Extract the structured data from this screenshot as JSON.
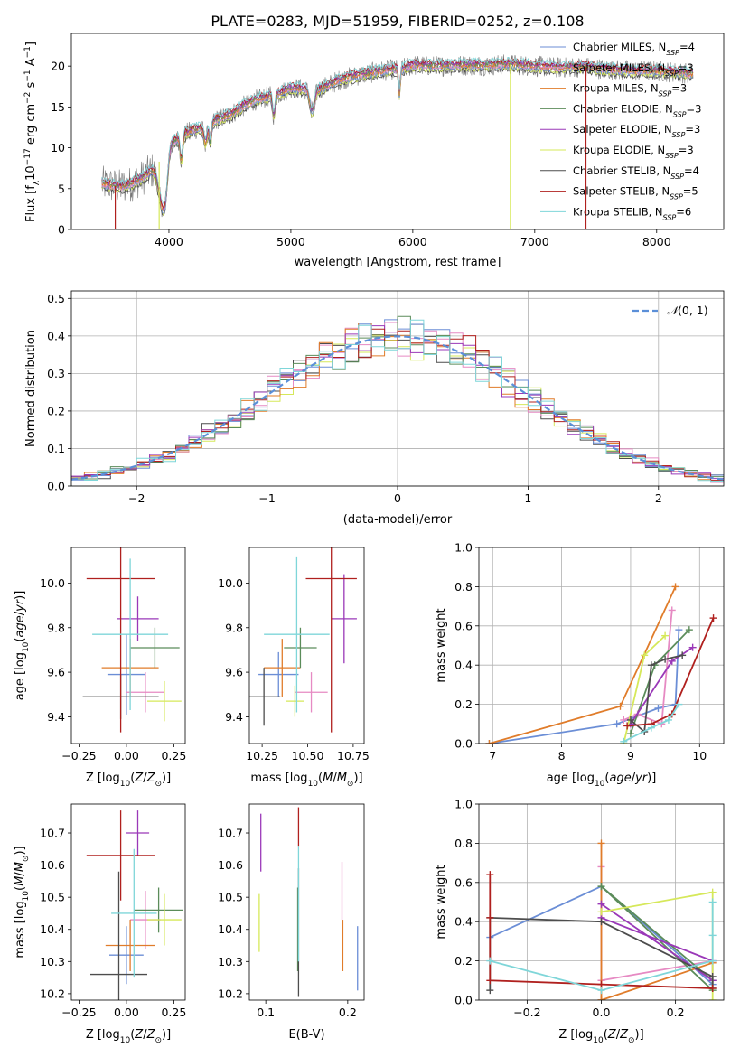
{
  "figure_title": "PLATE=0283, MJD=51959, FIBERID=0252, z=0.108",
  "colors": {
    "Chabrier MILES": "#6b8ed6",
    "Salpeter MILES": "#e68ac3",
    "Kroupa MILES": "#e07c2a",
    "Chabrier ELODIE": "#5b8c5a",
    "Salpeter ELODIE": "#9a38b8",
    "Kroupa ELODIE": "#d6e85a",
    "Chabrier STELIB": "#4d4d4d",
    "Salpeter STELIB": "#b0201e",
    "Kroupa STELIB": "#7fd6d9"
  },
  "legend": [
    {
      "key": "Chabrier MILES",
      "pre": "Chabrier MILES, N",
      "n": "4"
    },
    {
      "key": "Salpeter MILES",
      "pre": "Salpeter MILES, N",
      "n": "3"
    },
    {
      "key": "Kroupa MILES",
      "pre": "Kroupa MILES, N",
      "n": "3"
    },
    {
      "key": "Chabrier ELODIE",
      "pre": "Chabrier ELODIE, N",
      "n": "3"
    },
    {
      "key": "Salpeter ELODIE",
      "pre": "Salpeter ELODIE, N",
      "n": "3"
    },
    {
      "key": "Kroupa ELODIE",
      "pre": "Kroupa ELODIE, N",
      "n": "3"
    },
    {
      "key": "Chabrier STELIB",
      "pre": "Chabrier STELIB, N",
      "n": "4"
    },
    {
      "key": "Salpeter STELIB",
      "pre": "Salpeter STELIB, N",
      "n": "5"
    },
    {
      "key": "Kroupa STELIB",
      "pre": "Kroupa STELIB, N",
      "n": "6"
    }
  ],
  "chart_data": [
    {
      "id": "spectrum",
      "type": "line",
      "xlabel": "wavelength [Angstrom, rest frame]",
      "ylabel": "Flux [f_λ 10^-17 erg cm^-2 s^-1 A^-1]",
      "xlim": [
        3200,
        8550
      ],
      "ylim": [
        0,
        24
      ],
      "xticks": [
        4000,
        5000,
        6000,
        7000,
        8000
      ],
      "yticks": [
        0,
        5,
        10,
        15,
        20
      ],
      "continuum": [
        [
          3450,
          5.6
        ],
        [
          3600,
          5.2
        ],
        [
          3700,
          5.6
        ],
        [
          3800,
          6.5
        ],
        [
          3900,
          7.8
        ],
        [
          4000,
          10.3
        ],
        [
          4100,
          11.4
        ],
        [
          4200,
          12.2
        ],
        [
          4300,
          12.6
        ],
        [
          4400,
          13.5
        ],
        [
          4500,
          14.0
        ],
        [
          4600,
          15.0
        ],
        [
          4700,
          15.8
        ],
        [
          4800,
          16.2
        ],
        [
          4900,
          16.6
        ],
        [
          5000,
          17.3
        ],
        [
          5100,
          17.2
        ],
        [
          5200,
          16.9
        ],
        [
          5300,
          17.6
        ],
        [
          5400,
          18.3
        ],
        [
          5500,
          18.7
        ],
        [
          5600,
          19.0
        ],
        [
          5700,
          19.3
        ],
        [
          5800,
          19.5
        ],
        [
          5900,
          19.6
        ],
        [
          6000,
          20.1
        ],
        [
          6200,
          20.0
        ],
        [
          6400,
          20.1
        ],
        [
          6600,
          20.1
        ],
        [
          6800,
          20.2
        ],
        [
          7000,
          20.0
        ],
        [
          7200,
          19.8
        ],
        [
          7400,
          19.9
        ],
        [
          7600,
          19.6
        ],
        [
          7800,
          19.4
        ],
        [
          8000,
          19.4
        ],
        [
          8200,
          19.2
        ],
        [
          8300,
          19.0
        ]
      ]
    },
    {
      "id": "residuals",
      "type": "bar",
      "xlabel": "(data-model)/error",
      "ylabel": "Normed distribution",
      "xlim": [
        -2.5,
        2.5
      ],
      "ylim": [
        0,
        0.52
      ],
      "xticks": [
        -2,
        -1,
        0,
        1,
        2
      ],
      "yticks": [
        0.0,
        0.1,
        0.2,
        0.3,
        0.4,
        0.5
      ],
      "legend": "$\\mathcal{N}(0, 1)$",
      "bin_width": 0.1
    },
    {
      "id": "z_age",
      "type": "scatter",
      "xlabel": "Z [log10(Z/Z⊙)]",
      "ylabel": "age  [log10(age/yr)]",
      "xlim": [
        -0.29,
        0.31
      ],
      "ylim": [
        9.28,
        10.16
      ],
      "xticks": [
        -0.25,
        0.0,
        0.25
      ],
      "yticks": [
        9.4,
        9.6,
        9.8,
        10.0
      ],
      "points": [
        {
          "key": "Chabrier MILES",
          "x": 0.0,
          "xe": 0.1,
          "y": 9.59,
          "ye": 0.18
        },
        {
          "key": "Salpeter MILES",
          "x": 0.1,
          "xe": 0.1,
          "y": 9.51,
          "ye": 0.09
        },
        {
          "key": "Kroupa MILES",
          "x": 0.02,
          "xe": 0.15,
          "y": 9.62,
          "ye": 0.13
        },
        {
          "key": "Chabrier ELODIE",
          "x": 0.15,
          "xe": 0.13,
          "y": 9.71,
          "ye": 0.09
        },
        {
          "key": "Salpeter ELODIE",
          "x": 0.06,
          "xe": 0.11,
          "y": 9.84,
          "ye": 0.1
        },
        {
          "key": "Kroupa ELODIE",
          "x": 0.2,
          "xe": 0.09,
          "y": 9.47,
          "ye": 0.09
        },
        {
          "key": "Chabrier STELIB",
          "x": -0.03,
          "xe": 0.2,
          "y": 9.49,
          "ye": 0.1
        },
        {
          "key": "Salpeter STELIB",
          "x": -0.03,
          "xe": 0.18,
          "y": 10.02,
          "ye": 0.69
        },
        {
          "key": "Kroupa STELIB",
          "x": 0.02,
          "xe": 0.2,
          "y": 9.77,
          "ye": 0.34
        }
      ]
    },
    {
      "id": "mass_age",
      "type": "scatter",
      "xlabel": "mass [log10(M/M⊙)]",
      "ylabel": "",
      "xlim": [
        10.18,
        10.81
      ],
      "ylim": [
        9.28,
        10.16
      ],
      "xticks": [
        10.25,
        10.5,
        10.75
      ],
      "yticks": [
        9.4,
        9.6,
        9.8,
        10.0
      ],
      "points": [
        {
          "key": "Chabrier MILES",
          "x": 10.34,
          "xe": 0.11,
          "y": 9.59,
          "ye": 0.1
        },
        {
          "key": "Salpeter MILES",
          "x": 10.52,
          "xe": 0.09,
          "y": 9.51,
          "ye": 0.09
        },
        {
          "key": "Kroupa MILES",
          "x": 10.36,
          "xe": 0.1,
          "y": 9.62,
          "ye": 0.13
        },
        {
          "key": "Chabrier ELODIE",
          "x": 10.46,
          "xe": 0.09,
          "y": 9.71,
          "ye": 0.09
        },
        {
          "key": "Salpeter ELODIE",
          "x": 10.7,
          "xe": 0.07,
          "y": 9.84,
          "ye": 0.2
        },
        {
          "key": "Kroupa ELODIE",
          "x": 10.43,
          "xe": 0.05,
          "y": 9.47,
          "ye": 0.07
        },
        {
          "key": "Chabrier STELIB",
          "x": 10.26,
          "xe": 0.09,
          "y": 9.49,
          "ye": 0.13
        },
        {
          "key": "Salpeter STELIB",
          "x": 10.63,
          "xe": 0.14,
          "y": 10.02,
          "ye": 0.69
        },
        {
          "key": "Kroupa STELIB",
          "x": 10.44,
          "xe": 0.18,
          "y": 9.77,
          "ye": 0.35
        }
      ]
    },
    {
      "id": "age_weight",
      "type": "line",
      "xlabel": "age  [log10(age/yr)]",
      "ylabel": "mass weight",
      "xlim": [
        6.8,
        10.35
      ],
      "ylim": [
        0,
        1.0
      ],
      "xticks": [
        7,
        8,
        9,
        10
      ],
      "yticks": [
        0.0,
        0.2,
        0.4,
        0.6,
        0.8,
        1.0
      ],
      "series": [
        {
          "key": "Chabrier MILES",
          "x": [
            6.95,
            8.8,
            9.4,
            9.65,
            9.7
          ],
          "y": [
            0.0,
            0.1,
            0.18,
            0.2,
            0.58
          ]
        },
        {
          "key": "Salpeter MILES",
          "x": [
            8.9,
            9.1,
            9.45,
            9.6
          ],
          "y": [
            0.12,
            0.15,
            0.1,
            0.68
          ]
        },
        {
          "key": "Kroupa MILES",
          "x": [
            6.95,
            8.85,
            9.65
          ],
          "y": [
            0.0,
            0.19,
            0.8
          ]
        },
        {
          "key": "Chabrier ELODIE",
          "x": [
            9.0,
            9.35,
            9.85
          ],
          "y": [
            0.05,
            0.4,
            0.58
          ]
        },
        {
          "key": "Salpeter ELODIE",
          "x": [
            9.0,
            9.6,
            9.9
          ],
          "y": [
            0.1,
            0.42,
            0.49
          ]
        },
        {
          "key": "Kroupa ELODIE",
          "x": [
            8.9,
            9.2,
            9.5
          ],
          "y": [
            0.0,
            0.45,
            0.55
          ]
        },
        {
          "key": "Chabrier STELIB",
          "x": [
            9.0,
            9.2,
            9.3,
            9.5,
            9.75
          ],
          "y": [
            0.12,
            0.06,
            0.4,
            0.43,
            0.45
          ]
        },
        {
          "key": "Salpeter STELIB",
          "x": [
            8.95,
            9.3,
            9.6,
            10.2
          ],
          "y": [
            0.09,
            0.1,
            0.15,
            0.64
          ]
        },
        {
          "key": "Kroupa STELIB",
          "x": [
            8.9,
            9.3,
            9.55,
            9.7
          ],
          "y": [
            0.01,
            0.08,
            0.12,
            0.2
          ]
        }
      ]
    },
    {
      "id": "z_mass",
      "type": "scatter",
      "xlabel": "Z [log10(Z/Z⊙)]",
      "ylabel": "mass [log10(M/M⊙)]",
      "xlim": [
        -0.29,
        0.31
      ],
      "ylim": [
        10.18,
        10.79
      ],
      "xticks": [
        -0.25,
        0.0,
        0.25
      ],
      "yticks": [
        10.2,
        10.3,
        10.4,
        10.5,
        10.6,
        10.7
      ],
      "points": [
        {
          "key": "Chabrier MILES",
          "x": 0.0,
          "xe": 0.09,
          "y": 10.32,
          "ye": 0.09
        },
        {
          "key": "Salpeter MILES",
          "x": 0.1,
          "xe": 0.08,
          "y": 10.43,
          "ye": 0.09
        },
        {
          "key": "Kroupa MILES",
          "x": 0.02,
          "xe": 0.13,
          "y": 10.35,
          "ye": 0.08
        },
        {
          "key": "Chabrier ELODIE",
          "x": 0.17,
          "xe": 0.13,
          "y": 10.46,
          "ye": 0.07
        },
        {
          "key": "Salpeter ELODIE",
          "x": 0.06,
          "xe": 0.06,
          "y": 10.7,
          "ye": 0.07
        },
        {
          "key": "Kroupa ELODIE",
          "x": 0.2,
          "xe": 0.09,
          "y": 10.43,
          "ye": 0.08
        },
        {
          "key": "Chabrier STELIB",
          "x": -0.04,
          "xe": 0.15,
          "y": 10.26,
          "ye": 0.32
        },
        {
          "key": "Salpeter STELIB",
          "x": -0.03,
          "xe": 0.18,
          "y": 10.63,
          "ye": 0.14
        },
        {
          "key": "Kroupa STELIB",
          "x": 0.04,
          "xe": 0.12,
          "y": 10.45,
          "ye": 0.2
        }
      ]
    },
    {
      "id": "ebv_mass",
      "type": "scatter",
      "xlabel": "E(B-V)",
      "ylabel": "",
      "xlim": [
        0.08,
        0.22
      ],
      "ylim": [
        10.18,
        10.79
      ],
      "xticks": [
        0.1,
        0.2
      ],
      "yticks": [
        10.2,
        10.3,
        10.4,
        10.5,
        10.6,
        10.7
      ],
      "points": [
        {
          "key": "Chabrier MILES",
          "x": 0.212,
          "xe": 0.0,
          "y": 10.31,
          "ye": 0.1
        },
        {
          "key": "Salpeter MILES",
          "x": 0.193,
          "xe": 0.0,
          "y": 10.52,
          "ye": 0.09
        },
        {
          "key": "Kroupa MILES",
          "x": 0.194,
          "xe": 0.0,
          "y": 10.35,
          "ye": 0.08
        },
        {
          "key": "Chabrier ELODIE",
          "x": 0.139,
          "xe": 0.0,
          "y": 10.4,
          "ye": 0.13
        },
        {
          "key": "Salpeter ELODIE",
          "x": 0.094,
          "xe": 0.0,
          "y": 10.67,
          "ye": 0.09
        },
        {
          "key": "Kroupa ELODIE",
          "x": 0.092,
          "xe": 0.0,
          "y": 10.42,
          "ye": 0.09
        },
        {
          "key": "Chabrier STELIB",
          "x": 0.14,
          "xe": 0.0,
          "y": 10.39,
          "ye": 0.2
        },
        {
          "key": "Salpeter STELIB",
          "x": 0.14,
          "xe": 0.0,
          "y": 10.72,
          "ye": 0.06
        },
        {
          "key": "Kroupa STELIB",
          "x": 0.14,
          "xe": 0.0,
          "y": 10.48,
          "ye": 0.18
        }
      ]
    },
    {
      "id": "z_weight",
      "type": "line",
      "xlabel": "Z [log10(Z/Z⊙)]",
      "ylabel": "mass weight",
      "xlim": [
        -0.33,
        0.33
      ],
      "ylim": [
        0,
        1.0
      ],
      "xticks": [
        -0.2,
        0.0,
        0.2
      ],
      "yticks": [
        0.0,
        0.2,
        0.4,
        0.6,
        0.8,
        1.0
      ],
      "series": [
        {
          "key": "Chabrier MILES",
          "x": [
            -0.3,
            0.0,
            0.3,
            0.3
          ],
          "y": [
            0.32,
            0.58,
            0.08,
            0.1
          ]
        },
        {
          "key": "Salpeter MILES",
          "x": [
            0.0,
            0.3,
            0.0,
            0.0
          ],
          "y": [
            0.1,
            0.2,
            0.1,
            0.68
          ]
        },
        {
          "key": "Kroupa MILES",
          "x": [
            0.0,
            0.3,
            0.0,
            0.0
          ],
          "y": [
            0.0,
            0.19,
            0.0,
            0.8
          ]
        },
        {
          "key": "Chabrier ELODIE",
          "x": [
            0.0,
            0.3,
            0.3,
            0.0
          ],
          "y": [
            0.58,
            0.05,
            0.1,
            0.58
          ]
        },
        {
          "key": "Salpeter ELODIE",
          "x": [
            0.0,
            0.3,
            0.3,
            0.0
          ],
          "y": [
            0.49,
            0.1,
            0.2,
            0.42
          ]
        },
        {
          "key": "Kroupa ELODIE",
          "x": [
            0.0,
            0.3,
            0.3
          ],
          "y": [
            0.45,
            0.55,
            0.0
          ]
        },
        {
          "key": "Chabrier STELIB",
          "x": [
            -0.3,
            -0.3,
            0.0,
            0.3,
            0.3
          ],
          "y": [
            0.05,
            0.42,
            0.4,
            0.12,
            0.06
          ]
        },
        {
          "key": "Salpeter STELIB",
          "x": [
            -0.3,
            -0.3,
            -0.3,
            0.0,
            0.3
          ],
          "y": [
            0.64,
            0.42,
            0.1,
            0.08,
            0.06
          ]
        },
        {
          "key": "Kroupa STELIB",
          "x": [
            -0.3,
            0.0,
            0.3,
            0.3,
            0.3
          ],
          "y": [
            0.2,
            0.05,
            0.2,
            0.33,
            0.5
          ]
        }
      ]
    }
  ]
}
